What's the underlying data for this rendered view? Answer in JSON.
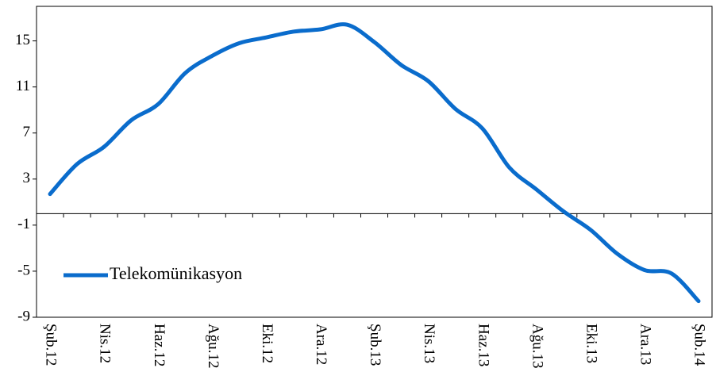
{
  "chart_data": {
    "type": "line",
    "categories": [
      "Şub.12",
      null,
      "Nis.12",
      null,
      "Haz.12",
      null,
      "Ağu.12",
      null,
      "Eki.12",
      null,
      "Ara.12",
      null,
      "Şub.13",
      null,
      "Nis.13",
      null,
      "Haz.13",
      null,
      "Ağu.13",
      null,
      "Eki.13",
      null,
      "Ara.13",
      null,
      "Şub.14"
    ],
    "series": [
      {
        "name": "Telekomünikasyon",
        "color": "#0a6ccc",
        "values": [
          1.7,
          4.3,
          5.8,
          8.1,
          9.5,
          12.2,
          13.7,
          14.8,
          15.3,
          15.8,
          16.0,
          16.4,
          14.9,
          12.9,
          11.5,
          9.1,
          7.4,
          4.0,
          2.1,
          0.2,
          -1.4,
          -3.5,
          -4.9,
          -5.2,
          -7.6
        ]
      }
    ],
    "ylim": [
      -9,
      18
    ],
    "yticks": [
      15,
      11,
      7,
      3,
      -1,
      -5,
      -9
    ],
    "grid": false,
    "legend": "lower left"
  }
}
